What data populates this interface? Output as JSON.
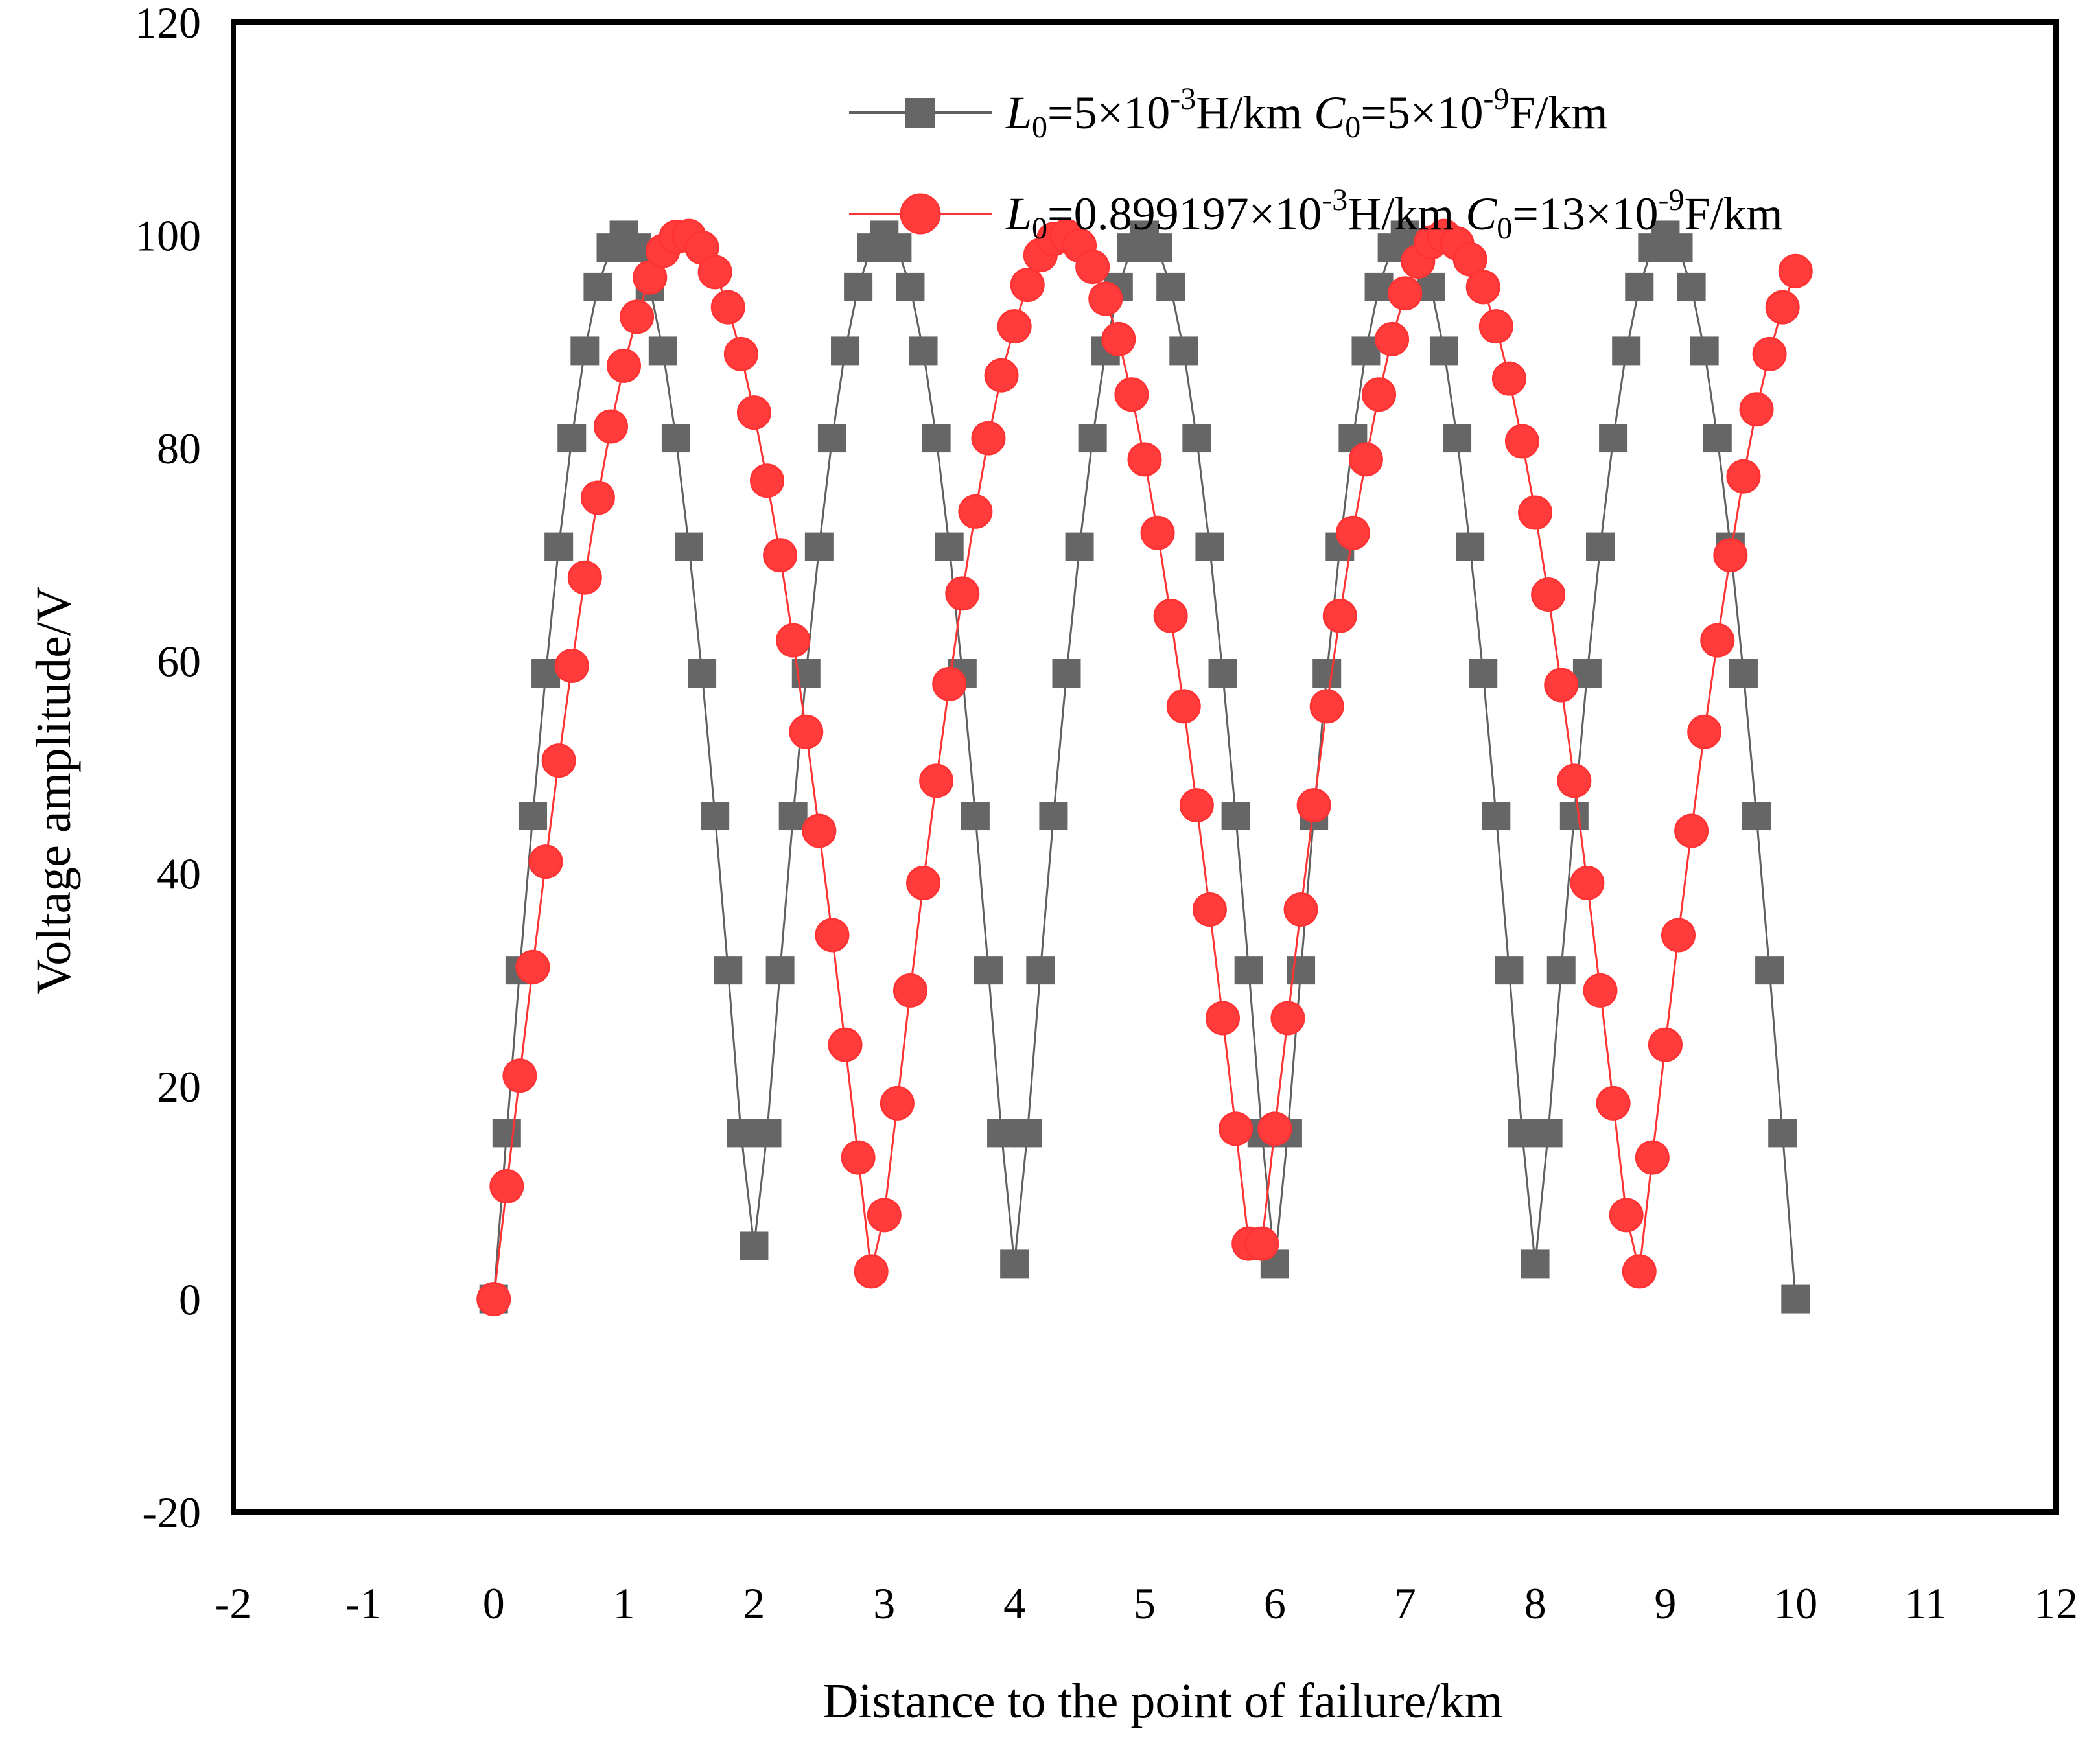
{
  "chart_data": {
    "type": "line",
    "title": "",
    "xlabel": "Distance to the point of failure/km",
    "ylabel": "Voltage amplitude/V",
    "xlim": [
      -2,
      12
    ],
    "ylim": [
      -20,
      120
    ],
    "xticks": [
      -2,
      -1,
      0,
      1,
      2,
      3,
      4,
      5,
      6,
      7,
      8,
      9,
      10,
      11,
      12
    ],
    "yticks": [
      -20,
      0,
      20,
      40,
      60,
      80,
      100,
      120
    ],
    "xtick_labels": [
      "-2",
      "-1",
      "0",
      "1",
      "2",
      "3",
      "4",
      "5",
      "6",
      "7",
      "8",
      "9",
      "10",
      "11",
      "12"
    ],
    "ytick_labels": [
      "-20",
      "0",
      "20",
      "40",
      "60",
      "80",
      "100",
      "120"
    ],
    "grid": false,
    "legend_position": "top-right",
    "series": [
      {
        "name": "L0=5×10-3H/km C0=5×10-9F/km",
        "legend": {
          "l_sym": "L",
          "l_sub": "0",
          "l_val": "=5×10",
          "l_exp": "-3",
          "l_unit": "H/km ",
          "c_sym": "C",
          "c_sub": "0",
          "c_val": "=5×10",
          "c_exp": "-9",
          "c_unit": "F/km"
        },
        "color": "#606060",
        "marker": "square",
        "x": [
          0,
          0.1,
          0.2,
          0.3,
          0.4,
          0.5,
          0.6,
          0.7,
          0.8,
          0.9,
          1.0,
          1.1,
          1.2,
          1.3,
          1.4,
          1.5,
          1.6,
          1.7,
          1.8,
          1.9,
          2.0,
          2.1,
          2.2,
          2.3,
          2.4,
          2.5,
          2.6,
          2.7,
          2.8,
          2.9,
          3.0,
          3.1,
          3.2,
          3.3,
          3.4,
          3.5,
          3.6,
          3.7,
          3.8,
          3.9,
          4.0,
          4.1,
          4.2,
          4.3,
          4.4,
          4.5,
          4.6,
          4.7,
          4.8,
          4.9,
          5.0,
          5.1,
          5.2,
          5.3,
          5.4,
          5.5,
          5.6,
          5.7,
          5.8,
          5.9,
          6.0,
          6.1,
          6.2,
          6.3,
          6.4,
          6.5,
          6.6,
          6.7,
          6.8,
          6.9,
          7.0,
          7.1,
          7.2,
          7.3,
          7.4,
          7.5,
          7.6,
          7.7,
          7.8,
          7.9,
          8.0,
          8.1,
          8.2,
          8.3,
          8.4,
          8.5,
          8.6,
          8.7,
          8.8,
          8.9,
          9.0,
          9.1,
          9.2,
          9.3,
          9.4,
          9.5,
          9.6,
          9.7,
          9.8,
          9.9,
          10.0
        ],
        "y": [
          0,
          15.6,
          30.9,
          45.4,
          58.8,
          70.7,
          80.9,
          89.1,
          95.1,
          98.8,
          100,
          98.8,
          95.1,
          89.1,
          80.9,
          70.7,
          58.8,
          45.4,
          30.9,
          15.6,
          5.0,
          15.6,
          30.9,
          45.4,
          58.8,
          70.7,
          80.9,
          89.1,
          95.1,
          98.8,
          100,
          98.8,
          95.1,
          89.1,
          80.9,
          70.7,
          58.8,
          45.4,
          30.9,
          15.6,
          3.3,
          15.6,
          30.9,
          45.4,
          58.8,
          70.7,
          80.9,
          89.1,
          95.1,
          98.8,
          100,
          98.8,
          95.1,
          89.1,
          80.9,
          70.7,
          58.8,
          45.4,
          30.9,
          15.6,
          3.3,
          15.6,
          30.9,
          45.4,
          58.8,
          70.7,
          80.9,
          89.1,
          95.1,
          98.8,
          100,
          98.8,
          95.1,
          89.1,
          80.9,
          70.7,
          58.8,
          45.4,
          30.9,
          15.6,
          3.3,
          15.6,
          30.9,
          45.4,
          58.8,
          70.7,
          80.9,
          89.1,
          95.1,
          98.8,
          100,
          98.8,
          95.1,
          89.1,
          80.9,
          70.7,
          58.8,
          45.4,
          30.9,
          15.6,
          0
        ]
      },
      {
        "name": "L0=0.899197×10-3H/km C0=13×10-9F/km",
        "legend": {
          "l_sym": "L",
          "l_sub": "0",
          "l_val": "=0.899197×10",
          "l_exp": "-3",
          "l_unit": "H/km ",
          "c_sym": "C",
          "c_sub": "0",
          "c_val": "=13×10",
          "c_exp": "-9",
          "c_unit": "F/km"
        },
        "color": "#ff3333",
        "marker": "circle",
        "x": [
          0,
          0.1,
          0.2,
          0.3,
          0.4,
          0.5,
          0.6,
          0.7,
          0.8,
          0.9,
          1.0,
          1.1,
          1.2,
          1.3,
          1.4,
          1.5,
          1.6,
          1.7,
          1.8,
          1.9,
          2.0,
          2.1,
          2.2,
          2.3,
          2.4,
          2.5,
          2.6,
          2.7,
          2.8,
          2.9,
          3.0,
          3.1,
          3.2,
          3.3,
          3.4,
          3.5,
          3.6,
          3.7,
          3.8,
          3.9,
          4.0,
          4.1,
          4.2,
          4.3,
          4.4,
          4.5,
          4.6,
          4.7,
          4.8,
          4.9,
          5.0,
          5.1,
          5.2,
          5.3,
          5.4,
          5.5,
          5.6,
          5.7,
          5.8,
          5.9,
          6.0,
          6.1,
          6.2,
          6.3,
          6.4,
          6.5,
          6.6,
          6.7,
          6.8,
          6.9,
          7.0,
          7.1,
          7.2,
          7.3,
          7.4,
          7.5,
          7.6,
          7.7,
          7.8,
          7.9,
          8.0,
          8.1,
          8.2,
          8.3,
          8.4,
          8.5,
          8.6,
          8.7,
          8.8,
          8.9,
          9.0,
          9.1,
          9.2,
          9.3,
          9.4,
          9.5,
          9.6,
          9.7,
          9.8,
          9.9,
          10.0
        ],
        "y": [
          0,
          10.6,
          21.0,
          31.2,
          41.1,
          50.6,
          59.5,
          67.8,
          75.3,
          82.0,
          87.7,
          92.3,
          96.0,
          98.5,
          99.8,
          99.9,
          98.8,
          96.5,
          93.2,
          88.8,
          83.3,
          76.9,
          69.9,
          61.9,
          53.3,
          44.0,
          34.2,
          23.9,
          13.3,
          2.6,
          7.9,
          18.4,
          29.0,
          39.1,
          48.7,
          57.8,
          66.3,
          74.0,
          80.9,
          86.8,
          91.4,
          95.3,
          98.1,
          99.6,
          99.9,
          99.0,
          97.0,
          94.0,
          90.2,
          85.0,
          78.9,
          72.0,
          64.2,
          55.7,
          46.4,
          36.6,
          26.4,
          16.0,
          5.2,
          5.2,
          16.0,
          26.4,
          36.6,
          46.4,
          55.7,
          64.2,
          72.0,
          78.9,
          85.0,
          90.2,
          94.5,
          97.5,
          99.3,
          99.9,
          99.2,
          97.7,
          95.1,
          91.4,
          86.5,
          80.6,
          73.9,
          66.2,
          57.7,
          48.7,
          39.1,
          29.0,
          18.4,
          7.9,
          2.6,
          13.3,
          23.9,
          34.2,
          44.0,
          53.3,
          61.9,
          69.9,
          77.3,
          83.6,
          88.8,
          93.2,
          96.6
        ]
      }
    ]
  }
}
